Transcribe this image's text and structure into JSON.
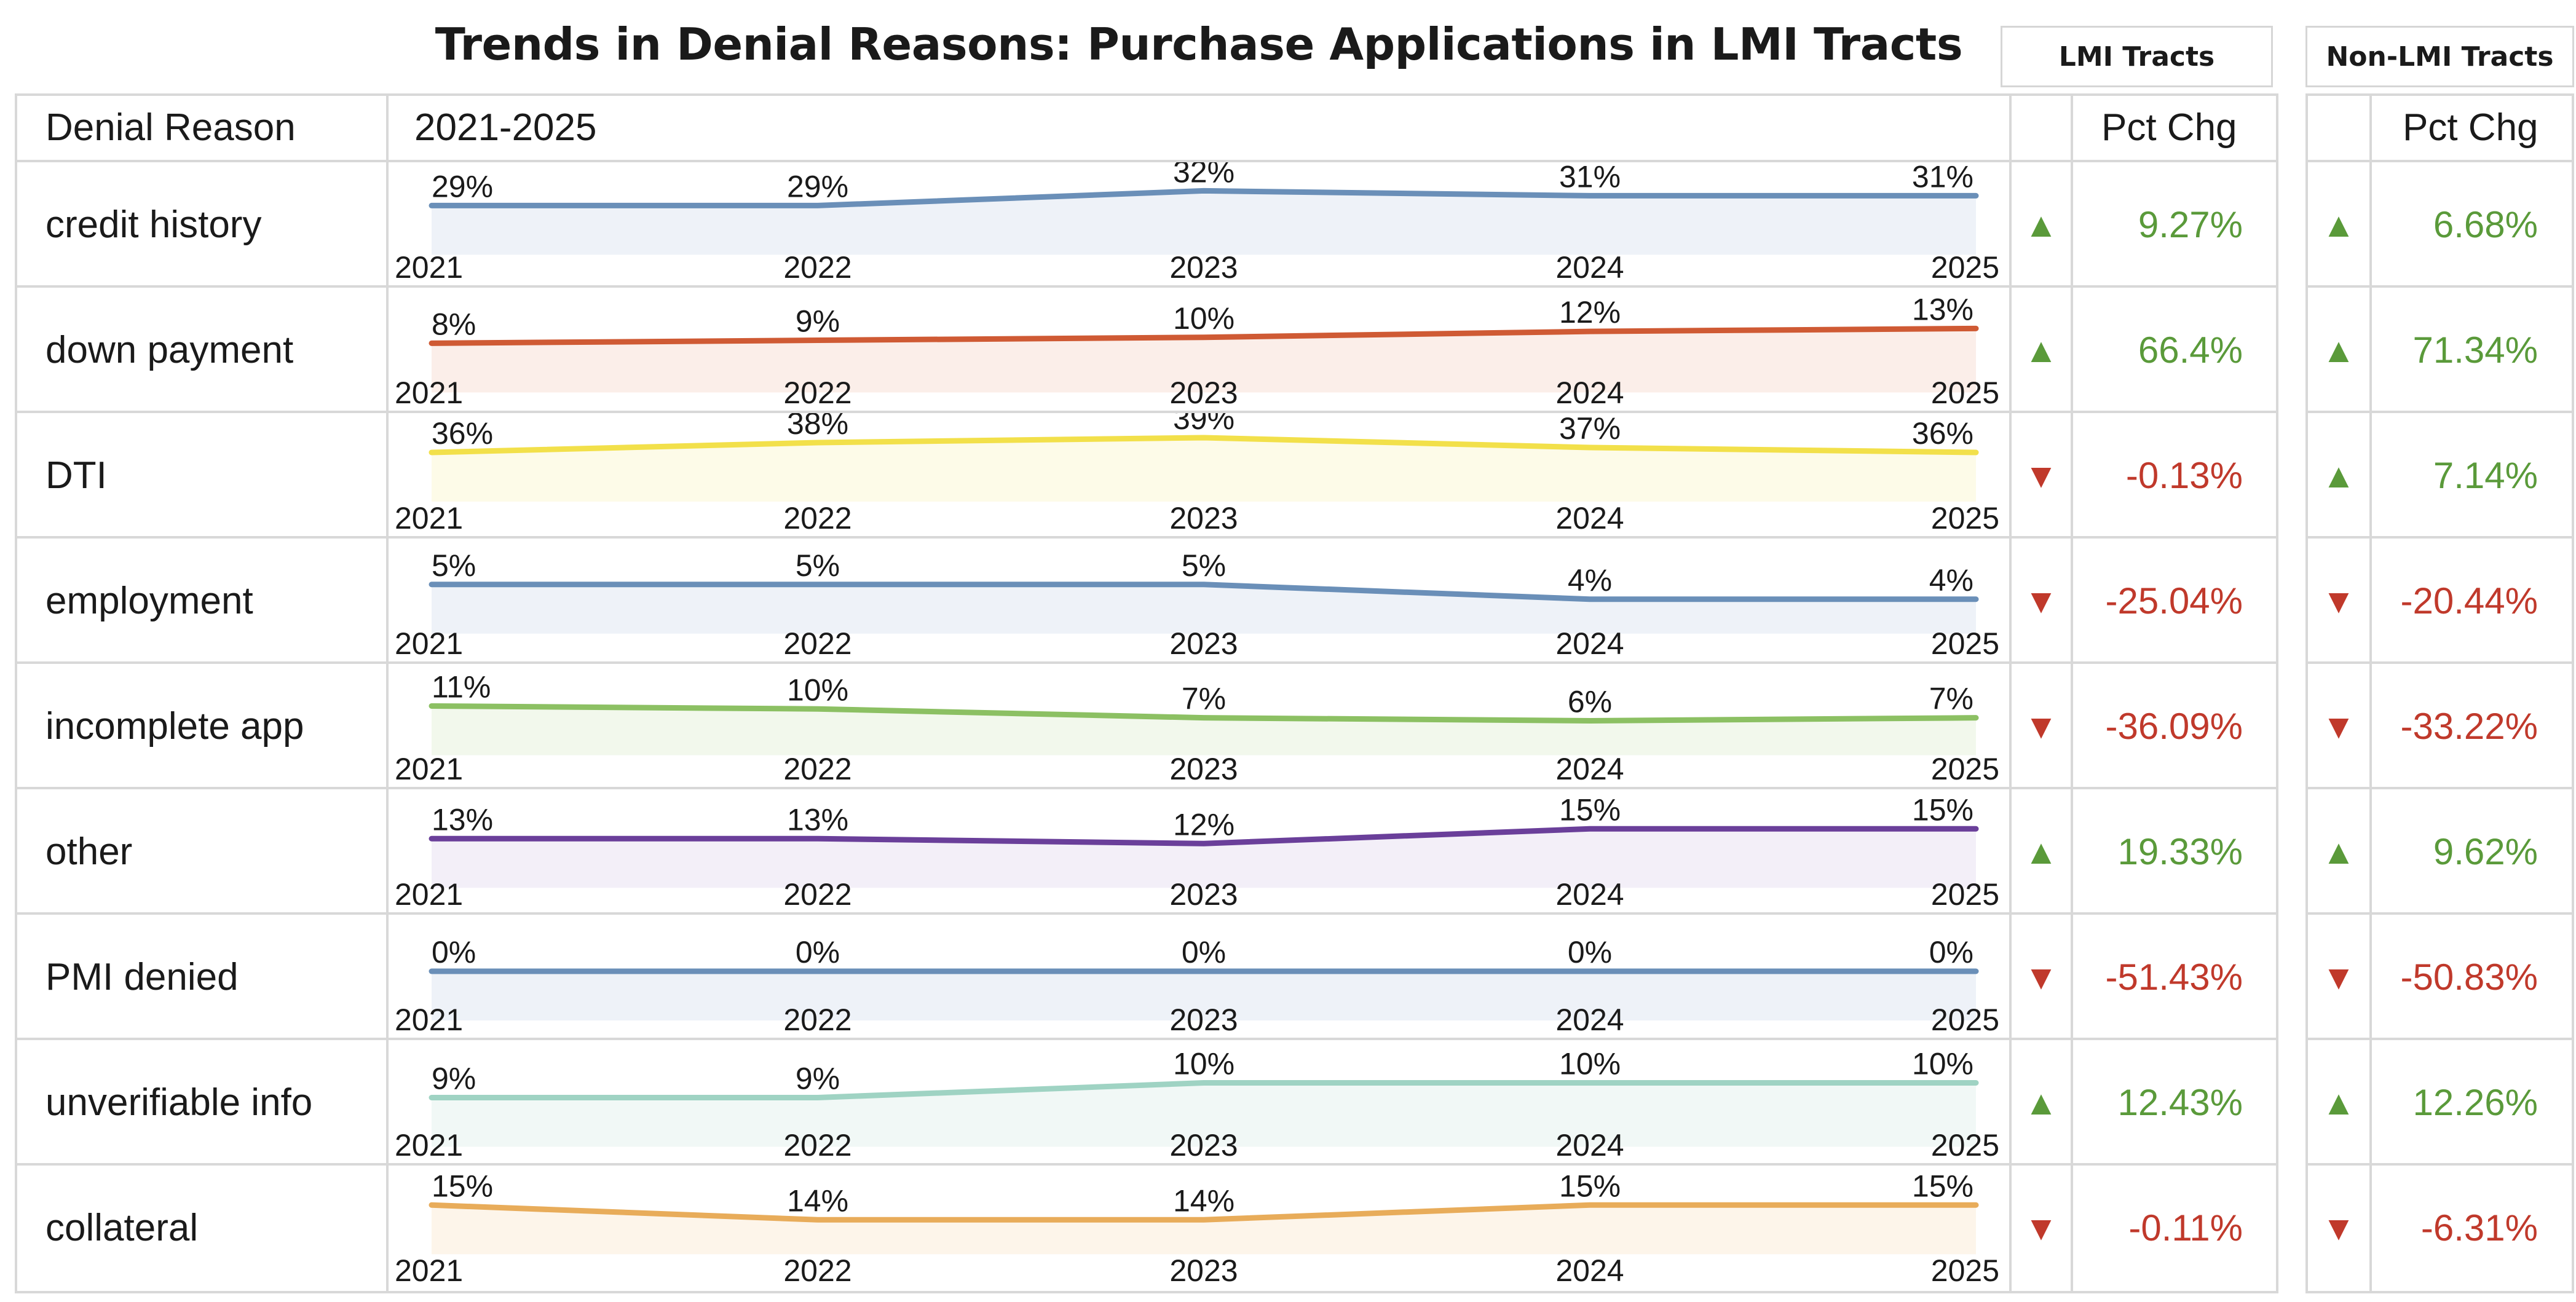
{
  "title": "Trends in Denial Reasons: Purchase Applications in LMI Tracts",
  "legend": {
    "lmi": "LMI Tracts",
    "non_lmi": "Non-LMI Tracts"
  },
  "headers": {
    "reason": "Denial Reason",
    "period": "2021-2025",
    "pct_chg": "Pct Chg",
    "pct_chg_non_lmi": "Pct Chg"
  },
  "colors": {
    "up": "#5a9a3a",
    "down": "#c0392b",
    "grid": "#d8d8d8"
  },
  "chart_data": {
    "type": "table",
    "years": [
      "2021",
      "2022",
      "2023",
      "2024",
      "2025"
    ],
    "rows": [
      {
        "reason": "credit history",
        "color": "#6a8fb8",
        "fill": "#eef2f8",
        "values": [
          29,
          29,
          32,
          31,
          31
        ],
        "labels": [
          "29%",
          "29%",
          "32%",
          "31%",
          "31%"
        ],
        "lmi_dir": "up",
        "lmi_pct": "9.27%",
        "non_lmi_dir": "up",
        "non_lmi_pct": "6.68%"
      },
      {
        "reason": "down payment",
        "color": "#cf5a34",
        "fill": "#fbeee9",
        "values": [
          8,
          9,
          10,
          12,
          13
        ],
        "labels": [
          "8%",
          "9%",
          "10%",
          "12%",
          "13%"
        ],
        "lmi_dir": "up",
        "lmi_pct": "66.4%",
        "non_lmi_dir": "up",
        "non_lmi_pct": "71.34%"
      },
      {
        "reason": "DTI",
        "color": "#f2e04a",
        "fill": "#fdfbe8",
        "values": [
          36,
          38,
          39,
          37,
          36
        ],
        "labels": [
          "36%",
          "38%",
          "39%",
          "37%",
          "36%"
        ],
        "lmi_dir": "down",
        "lmi_pct": "-0.13%",
        "non_lmi_dir": "up",
        "non_lmi_pct": "7.14%"
      },
      {
        "reason": "employment",
        "color": "#6a8fb8",
        "fill": "#eef2f8",
        "values": [
          5,
          5,
          5,
          4,
          4
        ],
        "labels": [
          "5%",
          "5%",
          "5%",
          "4%",
          "4%"
        ],
        "lmi_dir": "down",
        "lmi_pct": "-25.04%",
        "non_lmi_dir": "down",
        "non_lmi_pct": "-20.44%"
      },
      {
        "reason": "incomplete app",
        "color": "#8cc063",
        "fill": "#f2f8ec",
        "values": [
          11,
          10,
          7,
          6,
          7
        ],
        "labels": [
          "11%",
          "10%",
          "7%",
          "6%",
          "7%"
        ],
        "lmi_dir": "down",
        "lmi_pct": "-36.09%",
        "non_lmi_dir": "down",
        "non_lmi_pct": "-33.22%"
      },
      {
        "reason": "other",
        "color": "#6a3f9a",
        "fill": "#f3eff8",
        "values": [
          13,
          13,
          12,
          15,
          15
        ],
        "labels": [
          "13%",
          "13%",
          "12%",
          "15%",
          "15%"
        ],
        "lmi_dir": "up",
        "lmi_pct": "19.33%",
        "non_lmi_dir": "up",
        "non_lmi_pct": "9.62%"
      },
      {
        "reason": "PMI denied",
        "color": "#6a8fb8",
        "fill": "#eef2f8",
        "values": [
          0,
          0,
          0,
          0,
          0
        ],
        "labels": [
          "0%",
          "0%",
          "0%",
          "0%",
          "0%"
        ],
        "lmi_dir": "down",
        "lmi_pct": "-51.43%",
        "non_lmi_dir": "down",
        "non_lmi_pct": "-50.83%"
      },
      {
        "reason": "unverifiable info",
        "color": "#9fd3c3",
        "fill": "#f1f8f6",
        "values": [
          9,
          9,
          10,
          10,
          10
        ],
        "labels": [
          "9%",
          "9%",
          "10%",
          "10%",
          "10%"
        ],
        "lmi_dir": "up",
        "lmi_pct": "12.43%",
        "non_lmi_dir": "up",
        "non_lmi_pct": "12.26%"
      },
      {
        "reason": "collateral",
        "color": "#e8ac5a",
        "fill": "#fdf5ea",
        "values": [
          15,
          14,
          14,
          15,
          15
        ],
        "labels": [
          "15%",
          "14%",
          "14%",
          "15%",
          "15%"
        ],
        "lmi_dir": "down",
        "lmi_pct": "-0.11%",
        "non_lmi_dir": "down",
        "non_lmi_pct": "-6.31%"
      }
    ]
  }
}
